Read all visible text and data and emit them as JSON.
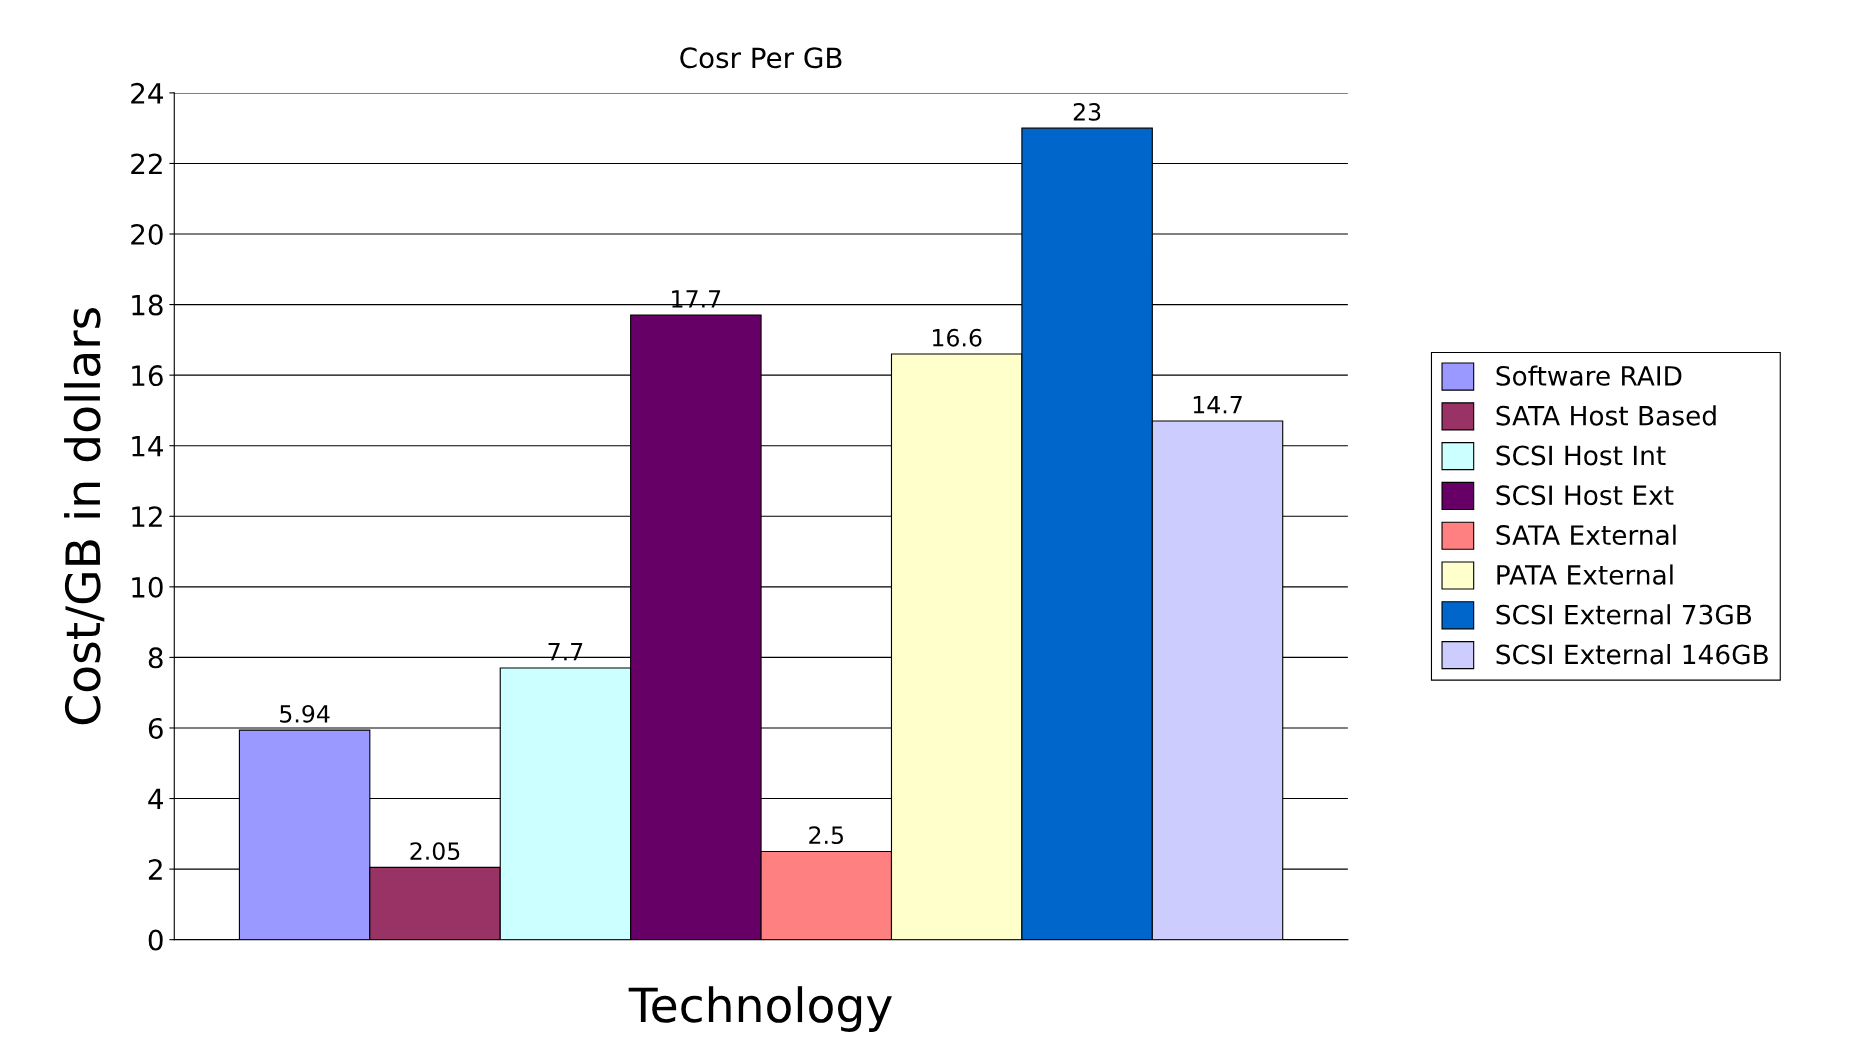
{
  "chart_data": {
    "type": "bar",
    "title": "Cosr Per GB",
    "xlabel": "Technology",
    "ylabel": "Cost/GB in dollars",
    "categories": [
      null
    ],
    "series": [
      {
        "name": "Software RAID",
        "color": "#9999ff",
        "values": [
          5.94
        ]
      },
      {
        "name": "SATA Host Based",
        "color": "#993366",
        "values": [
          2.05
        ]
      },
      {
        "name": "SCSI Host Int",
        "color": "#ccffff",
        "values": [
          7.7
        ]
      },
      {
        "name": "SCSI Host Ext",
        "color": "#660066",
        "values": [
          17.7
        ]
      },
      {
        "name": "SATA External",
        "color": "#ff8080",
        "values": [
          2.5
        ]
      },
      {
        "name": "PATA External",
        "color": "#ffffcc",
        "values": [
          16.6
        ]
      },
      {
        "name": "SCSI External 73GB",
        "color": "#0066cc",
        "values": [
          23
        ]
      },
      {
        "name": "SCSI External 146GB",
        "color": "#ccccff",
        "values": [
          14.7
        ]
      }
    ],
    "ylim": [
      0,
      24
    ],
    "yticks": [
      0,
      2,
      4,
      6,
      8,
      10,
      12,
      14,
      16,
      18,
      20,
      22,
      24
    ],
    "grid": "y",
    "legend": "right",
    "data_labels": true
  }
}
